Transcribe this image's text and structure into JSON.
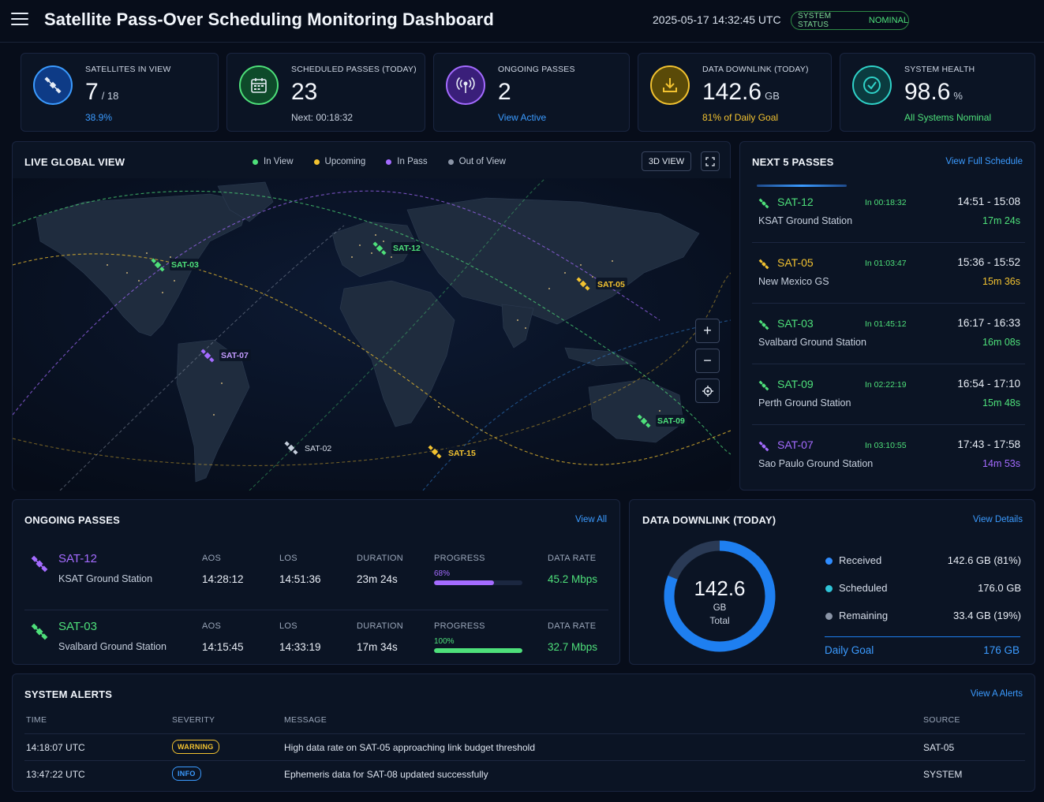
{
  "header": {
    "title": "Satellite Pass-Over Scheduling Monitoring Dashboard",
    "datetime": "2025-05-17 14:32:45 UTC",
    "system_status_label": "SYSTEM STATUS",
    "system_status_value": "NOMINAL"
  },
  "stats": [
    {
      "label": "SATELLITES IN VIEW",
      "value": "7",
      "unit": "/ 18",
      "sub": "38.9%",
      "icon": "satellite-icon",
      "color": "#3b9bff"
    },
    {
      "label": "SCHEDULED PASSES (TODAY)",
      "value": "23",
      "unit": "",
      "sub": "Next: 00:18:32",
      "icon": "calendar-icon",
      "color": "#4ee07a"
    },
    {
      "label": "ONGOING PASSES",
      "value": "2",
      "unit": "",
      "sub": "View Active",
      "icon": "broadcast-icon",
      "color": "#a46bff"
    },
    {
      "label": "DATA DOWNLINK (TODAY)",
      "value": "142.6",
      "unit": "GB",
      "sub": "81% of Daily Goal",
      "icon": "download-icon",
      "color": "#f2c230"
    },
    {
      "label": "SYSTEM HEALTH",
      "value": "98.6",
      "unit": "%",
      "sub": "All Systems Nominal",
      "icon": "check-circle-icon",
      "color": "#2fd2c8"
    }
  ],
  "map": {
    "title": "LIVE GLOBAL VIEW",
    "legend": [
      {
        "label": "In View",
        "color": "#4ee07a"
      },
      {
        "label": "Upcoming",
        "color": "#f2c230"
      },
      {
        "label": "In Pass",
        "color": "#a46bff"
      },
      {
        "label": "Out of View",
        "color": "#8a94a6"
      }
    ],
    "view_button": "3D VIEW",
    "satellites": [
      {
        "name": "SAT-12",
        "status": "in-view"
      },
      {
        "name": "SAT-03",
        "status": "in-view"
      },
      {
        "name": "SAT-05",
        "status": "upcoming"
      },
      {
        "name": "SAT-07",
        "status": "in-pass"
      },
      {
        "name": "SAT-09",
        "status": "in-view"
      },
      {
        "name": "SAT-02",
        "status": "out-of-view"
      },
      {
        "name": "SAT-15",
        "status": "upcoming"
      }
    ]
  },
  "next_passes": {
    "title": "NEXT 5 PASSES",
    "link": "View Full Schedule",
    "items": [
      {
        "sat": "SAT-12",
        "station": "KSAT Ground Station",
        "eta": "In 00:18:32",
        "window": "14:51 - 15:08",
        "duration": "17m 24s",
        "color": "#4ee07a"
      },
      {
        "sat": "SAT-05",
        "station": "New Mexico GS",
        "eta": "In 01:03:47",
        "window": "15:36 - 15:52",
        "duration": "15m 36s",
        "color": "#f2c230"
      },
      {
        "sat": "SAT-03",
        "station": "Svalbard Ground Station",
        "eta": "In 01:45:12",
        "window": "16:17 - 16:33",
        "duration": "16m 08s",
        "color": "#4ee07a"
      },
      {
        "sat": "SAT-09",
        "station": "Perth Ground Station",
        "eta": "In 02:22:19",
        "window": "16:54 - 17:10",
        "duration": "15m 48s",
        "color": "#4ee07a"
      },
      {
        "sat": "SAT-07",
        "station": "Sao Paulo Ground Station",
        "eta": "In 03:10:55",
        "window": "17:43 - 17:58",
        "duration": "14m 53s",
        "color": "#a46bff"
      }
    ]
  },
  "ongoing": {
    "title": "ONGOING PASSES",
    "link": "View All",
    "headers": {
      "aos": "AOS",
      "los": "LOS",
      "duration": "DURATION",
      "progress": "PROGRESS",
      "rate": "DATA RATE"
    },
    "items": [
      {
        "sat": "SAT-12",
        "station": "KSAT Ground Station",
        "aos": "14:28:12",
        "los": "14:51:36",
        "duration": "23m 24s",
        "progress_label": "68%",
        "progress": 0.68,
        "rate": "45.2 Mbps",
        "color": "#a46bff"
      },
      {
        "sat": "SAT-03",
        "station": "Svalbard Ground Station",
        "aos": "14:15:45",
        "los": "14:33:19",
        "duration": "17m 34s",
        "progress_label": "100%",
        "progress": 1.0,
        "rate": "32.7 Mbps",
        "color": "#4ee07a"
      }
    ]
  },
  "downlink": {
    "title": "DATA DOWNLINK (TODAY)",
    "link": "View Details",
    "total": "142.6",
    "unit": "GB",
    "total_label": "Total",
    "received_fraction": 0.81,
    "rows": [
      {
        "label": "Received",
        "value": "142.6 GB (81%)",
        "color": "#2f8cff"
      },
      {
        "label": "Scheduled",
        "value": "176.0 GB",
        "color": "#2fc4d8"
      },
      {
        "label": "Remaining",
        "value": "33.4 GB (19%)",
        "color": "#8a94a6"
      }
    ],
    "goal_label": "Daily Goal",
    "goal_value": "176 GB"
  },
  "alerts": {
    "title": "SYSTEM ALERTS",
    "link": "View A Alerts",
    "headers": {
      "time": "TIME",
      "severity": "SEVERITY",
      "message": "MESSAGE",
      "source": "SOURCE"
    },
    "items": [
      {
        "time": "14:18:07 UTC",
        "severity": "WARNING",
        "message": "High data rate on SAT-05 approaching link budget threshold",
        "source": "SAT-05",
        "color": "#f2c230"
      },
      {
        "time": "13:47:22 UTC",
        "severity": "INFO",
        "message": "Ephemeris data for SAT-08 updated successfully",
        "source": "SYSTEM",
        "color": "#3b9bff"
      }
    ]
  }
}
